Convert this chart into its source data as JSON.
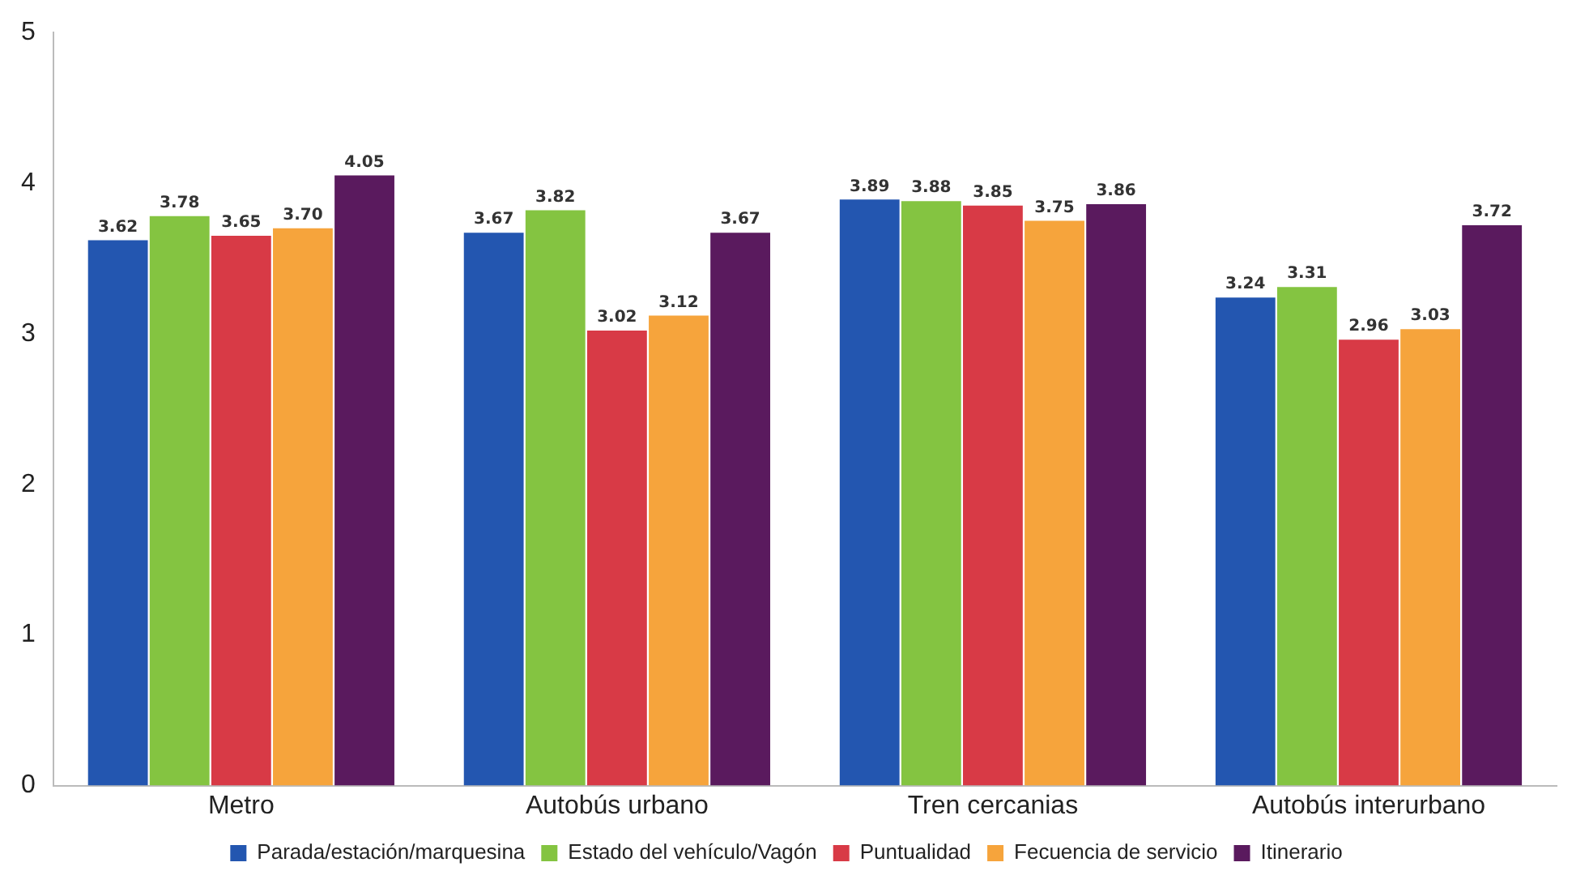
{
  "chart_data": {
    "type": "bar",
    "categories": [
      "Metro",
      "Autobús urbano",
      "Tren cercanias",
      "Autobús interurbano"
    ],
    "series": [
      {
        "name": "Parada/estación/marquesina",
        "color": "#2356b0",
        "values": [
          3.62,
          3.67,
          3.89,
          3.24
        ],
        "value_labels": [
          "3.62",
          "3.67",
          "3.89",
          "3.24"
        ]
      },
      {
        "name": "Estado del vehículo/Vagón",
        "color": "#84c441",
        "values": [
          3.78,
          3.82,
          3.88,
          3.31
        ],
        "value_labels": [
          "3.78",
          "3.82",
          "3.88",
          "3.31"
        ]
      },
      {
        "name": "Puntualidad",
        "color": "#d83a46",
        "values": [
          3.65,
          3.02,
          3.85,
          2.96
        ],
        "value_labels": [
          "3.65",
          "3.02",
          "3.85",
          "2.96"
        ]
      },
      {
        "name": "Fecuencia de servicio",
        "color": "#f6a43c",
        "values": [
          3.7,
          3.12,
          3.75,
          3.03
        ],
        "value_labels": [
          "3.70",
          "3.12",
          "3.75",
          "3.03"
        ]
      },
      {
        "name": "Itinerario",
        "color": "#5a1a5e",
        "values": [
          4.05,
          3.67,
          3.86,
          3.72
        ],
        "value_labels": [
          "4.05",
          "3.67",
          "3.86",
          "3.72"
        ]
      }
    ],
    "ylim": [
      0,
      5
    ],
    "yticks": [
      0,
      1,
      2,
      3,
      4,
      5
    ],
    "grid": false,
    "legend": "bottom"
  }
}
